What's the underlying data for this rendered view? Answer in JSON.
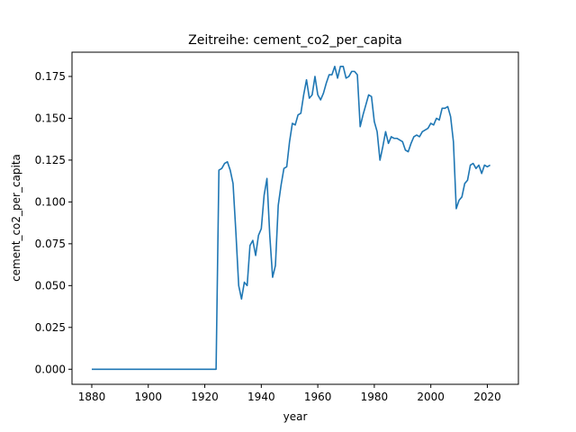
{
  "chart_data": {
    "type": "line",
    "title": "Zeitreihe: cement_co2_per_capita",
    "xlabel": "year",
    "ylabel": "cement_co2_per_capita",
    "xlim": [
      1873,
      2031
    ],
    "ylim": [
      -0.009,
      0.1895
    ],
    "grid": false,
    "x_ticks": [
      1880,
      1900,
      1920,
      1940,
      1960,
      1980,
      2000,
      2020
    ],
    "x_tick_labels": [
      "1880",
      "1900",
      "1920",
      "1940",
      "1960",
      "1980",
      "2000",
      "2020"
    ],
    "y_ticks": [
      0.0,
      0.025,
      0.05,
      0.075,
      0.1,
      0.125,
      0.15,
      0.175
    ],
    "y_tick_labels": [
      "0.000",
      "0.025",
      "0.050",
      "0.075",
      "0.100",
      "0.125",
      "0.150",
      "0.175"
    ],
    "series": [
      {
        "color": "#1f77b4",
        "x": [
          1880,
          1881,
          1882,
          1883,
          1884,
          1885,
          1886,
          1887,
          1888,
          1889,
          1890,
          1891,
          1892,
          1893,
          1894,
          1895,
          1896,
          1897,
          1898,
          1899,
          1900,
          1901,
          1902,
          1903,
          1904,
          1905,
          1906,
          1907,
          1908,
          1909,
          1910,
          1911,
          1912,
          1913,
          1914,
          1915,
          1916,
          1917,
          1918,
          1919,
          1920,
          1921,
          1922,
          1923,
          1924,
          1925,
          1926,
          1927,
          1928,
          1929,
          1930,
          1931,
          1932,
          1933,
          1934,
          1935,
          1936,
          1937,
          1938,
          1939,
          1940,
          1941,
          1942,
          1943,
          1944,
          1945,
          1946,
          1947,
          1948,
          1949,
          1950,
          1951,
          1952,
          1953,
          1954,
          1955,
          1956,
          1957,
          1958,
          1959,
          1960,
          1961,
          1962,
          1963,
          1964,
          1965,
          1966,
          1967,
          1968,
          1969,
          1970,
          1971,
          1972,
          1973,
          1974,
          1975,
          1976,
          1977,
          1978,
          1979,
          1980,
          1981,
          1982,
          1983,
          1984,
          1985,
          1986,
          1987,
          1988,
          1989,
          1990,
          1991,
          1992,
          1993,
          1994,
          1995,
          1996,
          1997,
          1998,
          1999,
          2000,
          2001,
          2002,
          2003,
          2004,
          2005,
          2006,
          2007,
          2008,
          2009,
          2010,
          2011,
          2012,
          2013,
          2014,
          2015,
          2016,
          2017,
          2018,
          2019,
          2020,
          2021
        ],
        "y": [
          0,
          0,
          0,
          0,
          0,
          0,
          0,
          0,
          0,
          0,
          0,
          0,
          0,
          0,
          0,
          0,
          0,
          0,
          0,
          0,
          0,
          0,
          0,
          0,
          0,
          0,
          0,
          0,
          0,
          0,
          0,
          0,
          0,
          0,
          0,
          0,
          0,
          0,
          0,
          0,
          0,
          0,
          0,
          0,
          0,
          0.119,
          0.12,
          0.123,
          0.124,
          0.119,
          0.111,
          0.082,
          0.05,
          0.042,
          0.052,
          0.05,
          0.074,
          0.077,
          0.068,
          0.08,
          0.084,
          0.104,
          0.114,
          0.08,
          0.055,
          0.062,
          0.098,
          0.11,
          0.12,
          0.121,
          0.136,
          0.147,
          0.146,
          0.152,
          0.153,
          0.164,
          0.173,
          0.162,
          0.164,
          0.175,
          0.164,
          0.161,
          0.165,
          0.171,
          0.176,
          0.176,
          0.181,
          0.174,
          0.181,
          0.181,
          0.174,
          0.175,
          0.178,
          0.178,
          0.176,
          0.145,
          0.152,
          0.158,
          0.164,
          0.163,
          0.148,
          0.142,
          0.125,
          0.133,
          0.142,
          0.135,
          0.139,
          0.138,
          0.138,
          0.137,
          0.136,
          0.131,
          0.13,
          0.135,
          0.139,
          0.14,
          0.139,
          0.142,
          0.143,
          0.144,
          0.147,
          0.146,
          0.15,
          0.149,
          0.156,
          0.156,
          0.157,
          0.151,
          0.136,
          0.096,
          0.101,
          0.103,
          0.111,
          0.113,
          0.122,
          0.123,
          0.12,
          0.122,
          0.117,
          0.122,
          0.121,
          0.122
        ]
      }
    ]
  }
}
